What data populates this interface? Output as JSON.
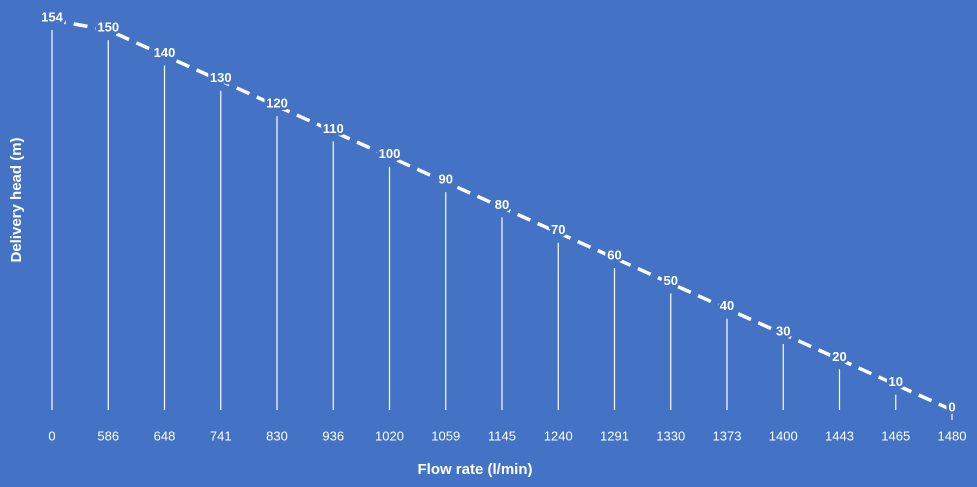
{
  "chart_data": {
    "type": "line",
    "x_label": "Flow rate (l/min)",
    "y_label": "Delivery head (m)",
    "categories": [
      "0",
      "586",
      "648",
      "741",
      "830",
      "936",
      "1020",
      "1059",
      "1145",
      "1240",
      "1291",
      "1330",
      "1373",
      "1400",
      "1443",
      "1465",
      "1480"
    ],
    "values": [
      154,
      150,
      140,
      130,
      120,
      110,
      100,
      90,
      80,
      70,
      60,
      50,
      40,
      30,
      20,
      10,
      0
    ],
    "color": "#ffffff",
    "background": "#4472c4",
    "ylim": [
      0,
      154
    ],
    "drop_lines": true,
    "data_labels": true,
    "dashed": true
  }
}
